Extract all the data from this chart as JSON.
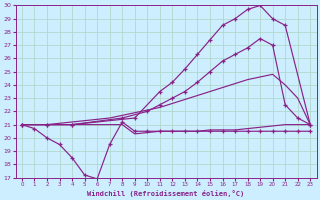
{
  "background_color": "#cceeff",
  "grid_color": "#b0d8cc",
  "line_color": "#882288",
  "xlabel": "Windchill (Refroidissement éolien,°C)",
  "xlim": [
    -0.5,
    23.5
  ],
  "ylim": [
    17,
    30
  ],
  "xticks": [
    0,
    1,
    2,
    3,
    4,
    5,
    6,
    7,
    8,
    9,
    10,
    11,
    12,
    13,
    14,
    15,
    16,
    17,
    18,
    19,
    20,
    21,
    22,
    23
  ],
  "yticks": [
    17,
    18,
    19,
    20,
    21,
    22,
    23,
    24,
    25,
    26,
    27,
    28,
    29,
    30
  ],
  "line1_nomark": {
    "x": [
      0,
      1,
      2,
      3,
      4,
      5,
      6,
      7,
      8,
      9,
      10,
      11,
      12,
      13,
      14,
      15,
      16,
      17,
      18,
      19,
      20,
      21,
      22,
      23
    ],
    "y": [
      21,
      21,
      21,
      21,
      21,
      21,
      21,
      21,
      21,
      20.3,
      20.4,
      20.5,
      20.5,
      20.5,
      20.5,
      20.6,
      20.6,
      20.6,
      20.7,
      20.8,
      20.9,
      21.0,
      21.0,
      21.0
    ]
  },
  "line2_nomark": {
    "x": [
      0,
      1,
      2,
      3,
      4,
      5,
      6,
      7,
      8,
      9,
      10,
      11,
      12,
      13,
      14,
      15,
      16,
      17,
      18,
      19,
      20,
      21,
      22,
      23
    ],
    "y": [
      21,
      21,
      21,
      21.1,
      21.2,
      21.3,
      21.4,
      21.5,
      21.7,
      21.9,
      22.1,
      22.3,
      22.6,
      22.9,
      23.2,
      23.5,
      23.8,
      24.1,
      24.4,
      24.6,
      24.8,
      24.0,
      23.0,
      21.0
    ]
  },
  "line3_mark": {
    "x": [
      0,
      2,
      4,
      8,
      10,
      11,
      12,
      13,
      14,
      15,
      16,
      17,
      18,
      19,
      20,
      21,
      22,
      23
    ],
    "y": [
      21,
      21,
      21,
      21.5,
      22.0,
      22.5,
      23.0,
      23.5,
      24.2,
      25.0,
      25.8,
      26.3,
      26.8,
      27.5,
      27.0,
      22.5,
      21.5,
      21.0
    ]
  },
  "line4_mark": {
    "x": [
      0,
      2,
      4,
      9,
      11,
      12,
      13,
      14,
      15,
      16,
      17,
      18,
      19,
      20,
      21,
      23
    ],
    "y": [
      21,
      21,
      21,
      21.5,
      23.5,
      24.2,
      25.2,
      26.3,
      27.4,
      28.5,
      29.0,
      29.7,
      30.0,
      29.0,
      28.5,
      21.0
    ]
  },
  "line5_mark": {
    "x": [
      0,
      1,
      2,
      3,
      4,
      5,
      6,
      7,
      8,
      9,
      10,
      11,
      12,
      13,
      14,
      15,
      16,
      17,
      18,
      19,
      20,
      21,
      22,
      23
    ],
    "y": [
      21,
      20.7,
      20.0,
      19.5,
      18.5,
      17.2,
      16.9,
      19.5,
      21.2,
      20.5,
      20.5,
      20.5,
      20.5,
      20.5,
      20.5,
      20.5,
      20.5,
      20.5,
      20.5,
      20.5,
      20.5,
      20.5,
      20.5,
      20.5
    ]
  }
}
